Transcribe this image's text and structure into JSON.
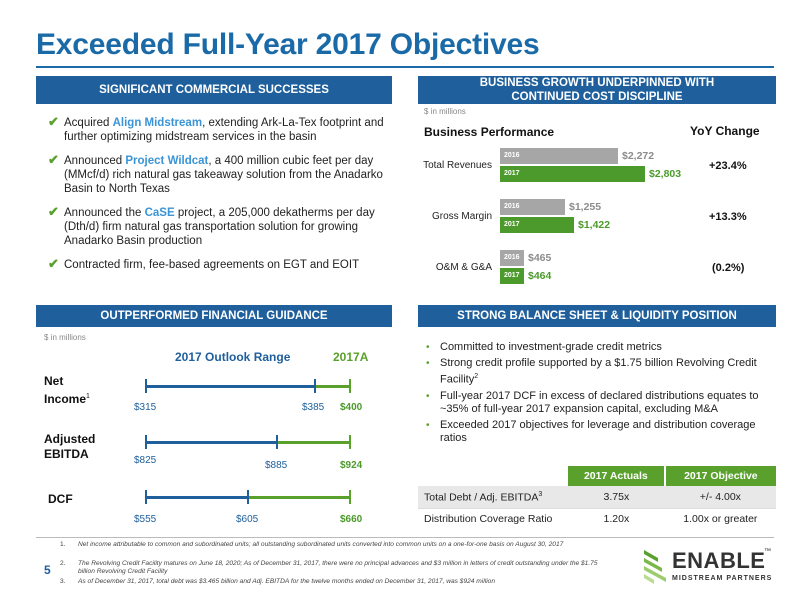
{
  "title": "Exceeded Full-Year 2017 Objectives",
  "colors": {
    "blue": "#1e5f9c",
    "green": "#5aa02c",
    "gray": "#a6a6a6"
  },
  "successes": {
    "header": "SIGNIFICANT COMMERCIAL SUCCESSES",
    "icon": "check-icon",
    "items": [
      {
        "pre": "Acquired ",
        "hl": "Align Midstream",
        "post": ", extending Ark-La-Tex footprint and further optimizing midstream services in the basin"
      },
      {
        "pre": "Announced ",
        "hl": "Project Wildcat",
        "post": ", a 400 million cubic feet per day (MMcf/d) rich natural gas takeaway solution from the Anadarko Basin to North Texas"
      },
      {
        "pre": "Announced the ",
        "hl": "CaSE",
        "post": " project, a 205,000 dekatherms per day (Dth/d) firm natural gas transportation solution for growing Anadarko Basin production"
      },
      {
        "pre": "Contracted firm, fee-based agreements on EGT and EOIT",
        "hl": "",
        "post": ""
      }
    ]
  },
  "growth": {
    "header_line1": "BUSINESS GROWTH UNDERPINNED WITH",
    "header_line2": "CONTINUED COST DISCIPLINE",
    "note": "$ in millions",
    "perf_title": "Business Performance",
    "yoy_title": "YoY Change"
  },
  "chart_data": {
    "type": "bar",
    "orientation": "horizontal",
    "categories": [
      "Total Revenues",
      "Gross Margin",
      "O&M & G&A"
    ],
    "series": [
      {
        "name": "2016",
        "values": [
          2272,
          1255,
          465
        ],
        "labels": [
          "$2,272",
          "$1,255",
          "$465"
        ]
      },
      {
        "name": "2017",
        "values": [
          2803,
          1422,
          464
        ],
        "labels": [
          "$2,803",
          "$1,422",
          "$464"
        ]
      }
    ],
    "yoy": [
      "+23.4%",
      "+13.3%",
      "(0.2%)"
    ],
    "xlim": [
      0,
      2803
    ]
  },
  "guidance": {
    "header": "OUTPERFORMED FINANCIAL GUIDANCE",
    "note": "$ in millions",
    "legend_range": "2017 Outlook Range",
    "legend_actual": "2017A",
    "rows": [
      {
        "label1": "Net",
        "label2": "Income",
        "sup": "1",
        "low": "$315",
        "high": "$385",
        "actual": "$400"
      },
      {
        "label1": "Adjusted",
        "label2": "EBITDA",
        "sup": "",
        "low": "$825",
        "high": "$885",
        "actual": "$924"
      },
      {
        "label1": "DCF",
        "label2": "",
        "sup": "",
        "low": "$555",
        "high": "$605",
        "actual": "$660"
      }
    ]
  },
  "balance": {
    "header": "STRONG BALANCE SHEET & LIQUIDITY POSITION",
    "b1": "Committed to investment-grade credit metrics",
    "b2": "Strong credit profile supported by a $1.75 billion Revolving Credit Facility",
    "b2_sup": "2",
    "b3": "Full-year 2017 DCF in excess of declared distributions equates to ~35% of full-year 2017 expansion capital, excluding M&A",
    "b4": "Exceeded 2017 objectives for leverage and distribution coverage ratios",
    "table": {
      "col1": "2017 Actuals",
      "col2": "2017 Objective",
      "r1_label": "Total Debt / Adj. EBITDA",
      "r1_sup": "3",
      "r1_actual": "3.75x",
      "r1_obj": "+/- 4.00x",
      "r2_label": "Distribution Coverage Ratio",
      "r2_actual": "1.20x",
      "r2_obj": "1.00x or greater"
    }
  },
  "footer": {
    "page": "5",
    "fn1_n": "1.",
    "fn1": "Net income attributable to common and subordinated units; all outstanding subordinated units converted into common units on a one-for-one basis on August 30, 2017",
    "fn2_n": "2.",
    "fn2": "The Revolving Credit Facility matures on June 18, 2020; As of December 31, 2017, there were no principal advances and $3 million in letters of credit outstanding under the $1.75 billion Revolving Credit Facility",
    "fn3_n": "3.",
    "fn3": "As of December 31, 2017, total debt was $3.465 billion and Adj. EBITDA for the twelve months ended on December 31, 2017, was $924 million"
  },
  "logo": {
    "word": "ENABLE",
    "tm": "™",
    "sub": "MIDSTREAM PARTNERS"
  }
}
